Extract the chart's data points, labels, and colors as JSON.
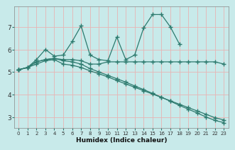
{
  "xlabel": "Humidex (Indice chaleur)",
  "bg_color": "#c8eaea",
  "grid_color": "#e8b4b4",
  "line_color": "#2d7a6e",
  "line1_x": [
    0,
    1,
    2,
    3,
    4,
    5,
    6,
    7,
    8,
    9,
    10,
    11,
    12,
    13,
    14,
    15,
    16,
    17,
    18
  ],
  "line1_y": [
    5.1,
    5.2,
    5.55,
    6.0,
    5.7,
    5.75,
    6.35,
    7.05,
    5.75,
    5.55,
    5.5,
    6.55,
    5.55,
    5.75,
    6.95,
    7.55,
    7.55,
    7.0,
    6.25
  ],
  "line2_x": [
    0,
    1,
    2,
    3,
    4,
    5,
    6,
    7,
    8,
    9,
    10,
    11,
    12,
    13,
    14,
    15,
    16,
    17,
    18,
    19,
    20,
    21,
    22,
    23
  ],
  "line2_y": [
    5.1,
    5.2,
    5.45,
    5.55,
    5.6,
    5.55,
    5.55,
    5.5,
    5.35,
    5.35,
    5.45,
    5.45,
    5.45,
    5.45,
    5.45,
    5.45,
    5.45,
    5.45,
    5.45,
    5.45,
    5.45,
    5.45,
    5.45,
    5.35
  ],
  "line3_x": [
    0,
    1,
    2,
    3,
    4,
    5,
    6,
    7,
    8,
    9,
    10,
    11,
    12,
    13,
    14,
    15,
    16,
    17,
    18,
    19,
    20,
    21,
    22,
    23
  ],
  "line3_y": [
    5.1,
    5.2,
    5.45,
    5.55,
    5.6,
    5.5,
    5.45,
    5.35,
    5.15,
    5.0,
    4.85,
    4.7,
    4.55,
    4.38,
    4.22,
    4.05,
    3.88,
    3.7,
    3.52,
    3.35,
    3.18,
    3.0,
    2.85,
    2.75
  ],
  "line4_x": [
    0,
    1,
    2,
    3,
    4,
    5,
    6,
    7,
    8,
    9,
    10,
    11,
    12,
    13,
    14,
    15,
    16,
    17,
    18,
    19,
    20,
    21,
    22,
    23
  ],
  "line4_y": [
    5.1,
    5.2,
    5.35,
    5.5,
    5.55,
    5.35,
    5.3,
    5.2,
    5.05,
    4.92,
    4.78,
    4.62,
    4.47,
    4.32,
    4.17,
    4.02,
    3.87,
    3.72,
    3.57,
    3.42,
    3.27,
    3.12,
    2.97,
    2.87
  ],
  "ylim": [
    2.5,
    7.9
  ],
  "xlim": [
    -0.5,
    23.5
  ],
  "yticks": [
    3,
    4,
    5,
    6,
    7
  ],
  "xticks": [
    0,
    1,
    2,
    3,
    4,
    5,
    6,
    7,
    8,
    9,
    10,
    11,
    12,
    13,
    14,
    15,
    16,
    17,
    18,
    19,
    20,
    21,
    22,
    23
  ],
  "markersize": 2.5,
  "linewidth": 0.9
}
